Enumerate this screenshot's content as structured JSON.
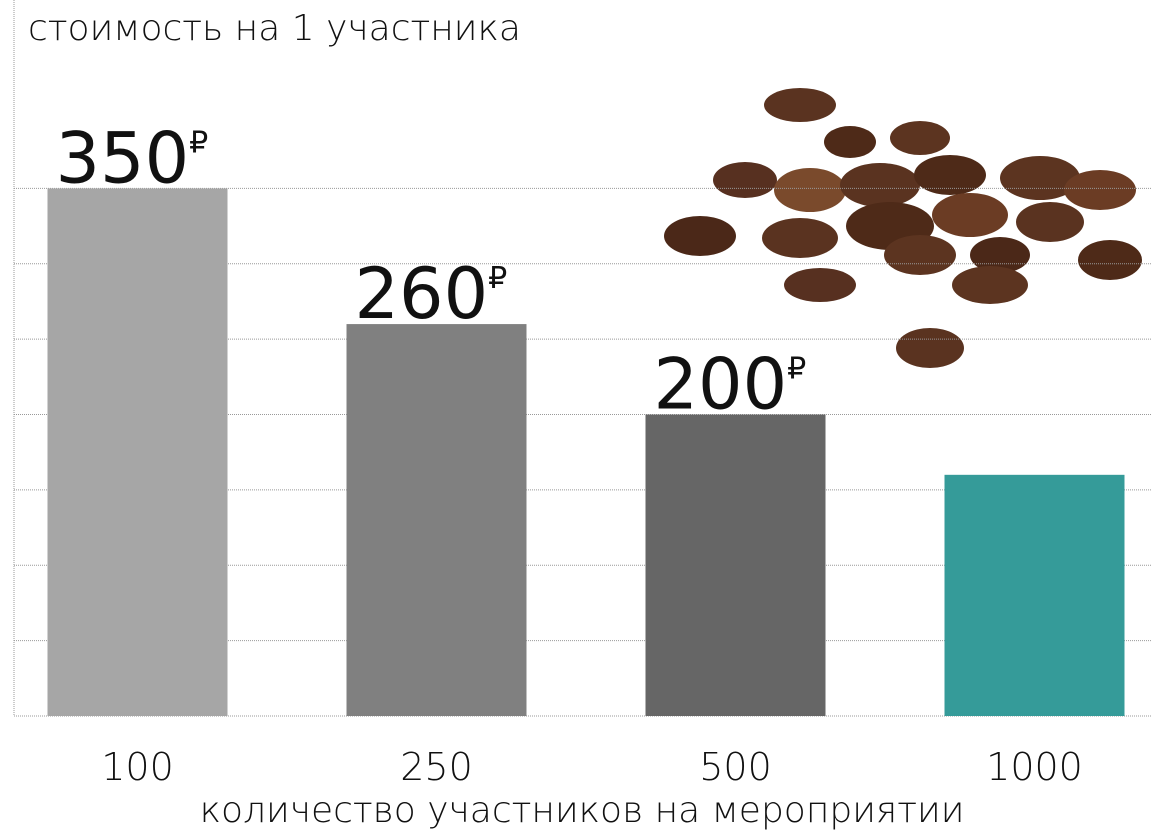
{
  "chart_data": {
    "type": "bar",
    "title": "стоимость на 1 участника",
    "x_label": "количество участников на мероприятии",
    "categories": [
      "100",
      "250",
      "500",
      "1000"
    ],
    "values": [
      350,
      260,
      200,
      160
    ],
    "value_labels": [
      "350₽",
      "260₽",
      "200₽",
      null
    ],
    "colors": [
      "#a6a6a6",
      "#808080",
      "#666666",
      "#359b99"
    ],
    "ylim": [
      0,
      475
    ],
    "yticks": [
      0,
      50,
      100,
      150,
      200,
      250,
      300,
      350
    ],
    "grid": true
  }
}
